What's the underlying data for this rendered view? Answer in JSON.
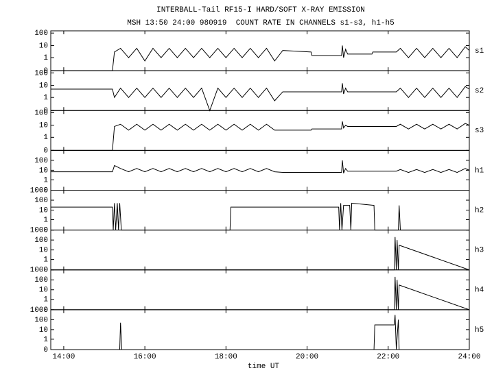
{
  "header": {
    "title": "INTERBALL-Tail RF15-I HARD/SOFT X-RAY EMISSION",
    "subtitle": "MSH 13:50 24:00 980919  COUNT RATE IN CHANNELS s1-s3, h1-h5"
  },
  "chart_data": [
    {
      "type": "line",
      "x": [
        13.68,
        15.2,
        15.25,
        15.4,
        15.6,
        15.8,
        16.0,
        16.2,
        16.4,
        16.6,
        16.8,
        17.0,
        17.2,
        17.4,
        17.6,
        17.8,
        18.0,
        18.2,
        18.4,
        18.6,
        18.8,
        19.0,
        19.2,
        19.4,
        20.1,
        20.12,
        20.85,
        20.87,
        20.9,
        20.95,
        21.0,
        21.6,
        21.62,
        22.2,
        22.3,
        22.5,
        22.7,
        22.9,
        23.1,
        23.3,
        23.5,
        23.7,
        23.9,
        24.0
      ],
      "series": [
        {
          "name": "s1",
          "color": "#000000",
          "values": [
            0,
            0,
            3,
            6,
            1,
            6,
            0.5,
            6,
            1,
            6,
            1,
            6,
            1,
            6,
            1,
            6,
            1,
            6,
            1,
            6,
            1,
            6,
            0.5,
            4,
            3,
            1.5,
            1.5,
            10,
            1,
            5,
            2,
            2,
            3,
            3,
            6,
            1,
            6,
            1,
            6,
            1,
            6,
            1,
            8,
            4
          ]
        }
      ],
      "xlim": [
        13.68,
        24
      ],
      "ylim": [
        0,
        150
      ],
      "yticks": [
        0,
        1,
        10,
        100
      ],
      "log": true
    },
    {
      "type": "line",
      "x": [
        13.68,
        15.2,
        15.25,
        15.4,
        15.6,
        15.8,
        16.0,
        16.2,
        16.4,
        16.6,
        16.8,
        17.0,
        17.2,
        17.4,
        17.6,
        17.8,
        18.0,
        18.2,
        18.4,
        18.6,
        18.8,
        19.0,
        19.2,
        19.4,
        20.1,
        20.12,
        20.85,
        20.87,
        20.9,
        20.95,
        21.0,
        21.6,
        21.62,
        22.2,
        22.3,
        22.5,
        22.7,
        22.9,
        23.1,
        23.3,
        23.5,
        23.7,
        23.9,
        24.0
      ],
      "series": [
        {
          "name": "s2",
          "color": "#000000",
          "values": [
            5,
            5,
            1,
            6,
            1,
            6,
            1,
            6,
            1,
            6,
            1,
            6,
            1,
            6,
            0,
            6,
            1,
            6,
            1,
            6,
            1,
            6,
            0.5,
            3,
            3,
            3,
            3,
            15,
            2,
            6,
            3,
            3,
            3,
            3,
            6,
            1,
            6,
            1,
            6,
            1,
            6,
            1,
            8,
            5
          ]
        }
      ],
      "xlim": [
        13.68,
        24
      ],
      "ylim": [
        0,
        150
      ],
      "yticks": [
        0,
        1,
        10,
        100
      ],
      "log": true
    },
    {
      "type": "line",
      "x": [
        13.68,
        15.2,
        15.25,
        15.4,
        15.6,
        15.8,
        16.0,
        16.2,
        16.4,
        16.6,
        16.8,
        17.0,
        17.2,
        17.4,
        17.6,
        17.8,
        18.0,
        18.2,
        18.4,
        18.6,
        18.8,
        19.0,
        19.2,
        19.4,
        20.1,
        20.12,
        20.85,
        20.87,
        20.9,
        20.95,
        21.0,
        21.6,
        21.62,
        22.2,
        22.3,
        22.5,
        22.7,
        22.9,
        23.1,
        23.3,
        23.5,
        23.7,
        23.9,
        24.0
      ],
      "series": [
        {
          "name": "s3",
          "color": "#000000",
          "values": [
            0,
            0,
            8,
            12,
            4,
            12,
            4,
            12,
            4,
            12,
            4,
            12,
            4,
            12,
            4,
            12,
            4,
            12,
            4,
            12,
            4,
            12,
            4,
            4,
            4,
            5,
            5,
            20,
            6,
            10,
            8,
            8,
            8,
            8,
            12,
            5,
            12,
            5,
            12,
            5,
            12,
            5,
            14,
            10
          ]
        }
      ],
      "xlim": [
        13.68,
        24
      ],
      "ylim": [
        0,
        150
      ],
      "yticks": [
        0,
        1,
        10,
        100
      ],
      "log": true
    },
    {
      "type": "line",
      "x": [
        13.68,
        15.2,
        15.25,
        15.4,
        15.6,
        15.8,
        16.0,
        16.2,
        16.4,
        16.6,
        16.8,
        17.0,
        17.2,
        17.4,
        17.6,
        17.8,
        18.0,
        18.2,
        18.4,
        18.6,
        18.8,
        19.0,
        19.2,
        19.4,
        20.1,
        20.12,
        20.85,
        20.87,
        20.9,
        20.95,
        21.0,
        21.6,
        21.62,
        22.2,
        22.3,
        22.5,
        22.7,
        22.9,
        23.1,
        23.3,
        23.5,
        23.7,
        23.9,
        24.0
      ],
      "series": [
        {
          "name": "h1",
          "color": "#000000",
          "values": [
            7,
            7,
            30,
            15,
            7,
            15,
            7,
            15,
            7,
            15,
            7,
            15,
            7,
            15,
            7,
            15,
            7,
            15,
            7,
            15,
            7,
            15,
            7,
            6,
            6,
            6,
            6,
            100,
            5,
            15,
            8,
            8,
            8,
            8,
            12,
            6,
            12,
            6,
            12,
            6,
            12,
            6,
            15,
            10
          ]
        }
      ],
      "xlim": [
        13.68,
        24
      ],
      "ylim": [
        0,
        1000
      ],
      "yticks": [
        0,
        1,
        10,
        100
      ],
      "log": true
    },
    {
      "type": "line",
      "x": [
        13.68,
        15.2,
        15.22,
        15.25,
        15.28,
        15.32,
        15.35,
        15.38,
        15.42,
        18.1,
        18.12,
        20.78,
        20.8,
        20.83,
        20.86,
        20.9,
        21.05,
        21.08,
        21.1,
        21.65,
        21.67,
        22.25,
        22.27,
        22.3,
        24.0
      ],
      "series": [
        {
          "name": "h2",
          "color": "#000000",
          "values": [
            20,
            20,
            0,
            50,
            0,
            50,
            0,
            50,
            0,
            0,
            20,
            20,
            0,
            50,
            0,
            30,
            30,
            0,
            50,
            30,
            0,
            0,
            30,
            0,
            0
          ]
        }
      ],
      "xlim": [
        13.68,
        24
      ],
      "ylim": [
        0,
        1000
      ],
      "yticks": [
        0,
        1,
        10,
        100,
        1000
      ],
      "log": true
    },
    {
      "type": "line",
      "x": [
        13.68,
        22.15,
        22.17,
        22.2,
        22.22,
        22.25,
        22.27,
        24.0
      ],
      "series": [
        {
          "name": "h3",
          "color": "#000000",
          "values": [
            0,
            0,
            200,
            0,
            100,
            0,
            30,
            0
          ]
        }
      ],
      "xlim": [
        13.68,
        24
      ],
      "ylim": [
        0,
        1000
      ],
      "yticks": [
        0,
        1,
        10,
        100,
        1000
      ],
      "log": true
    },
    {
      "type": "line",
      "x": [
        13.68,
        22.15,
        22.17,
        22.2,
        22.22,
        22.25,
        22.27,
        24.0
      ],
      "series": [
        {
          "name": "h4",
          "color": "#000000",
          "values": [
            0,
            0,
            200,
            0,
            100,
            0,
            30,
            0
          ]
        }
      ],
      "xlim": [
        13.68,
        24
      ],
      "ylim": [
        0,
        1000
      ],
      "yticks": [
        0,
        1,
        10,
        100,
        1000
      ],
      "log": true
    },
    {
      "type": "line",
      "x": [
        13.68,
        15.38,
        15.4,
        15.43,
        21.65,
        21.67,
        22.15,
        22.17,
        22.2,
        22.25,
        22.27,
        24.0
      ],
      "series": [
        {
          "name": "h5",
          "color": "#000000",
          "values": [
            0,
            0,
            50,
            0,
            0,
            30,
            30,
            300,
            0,
            100,
            0,
            0
          ]
        }
      ],
      "xlim": [
        13.68,
        24
      ],
      "ylim": [
        0,
        1000
      ],
      "yticks": [
        0,
        1,
        10,
        100,
        1000
      ],
      "log": true,
      "xlabel": "time UT",
      "xticks": [
        {
          "value": 14,
          "label": "14:00"
        },
        {
          "value": 16,
          "label": "16:00"
        },
        {
          "value": 18,
          "label": "18:00"
        },
        {
          "value": 20,
          "label": "20:00"
        },
        {
          "value": 22,
          "label": "22:00"
        },
        {
          "value": 24,
          "label": "24:00"
        }
      ]
    }
  ]
}
